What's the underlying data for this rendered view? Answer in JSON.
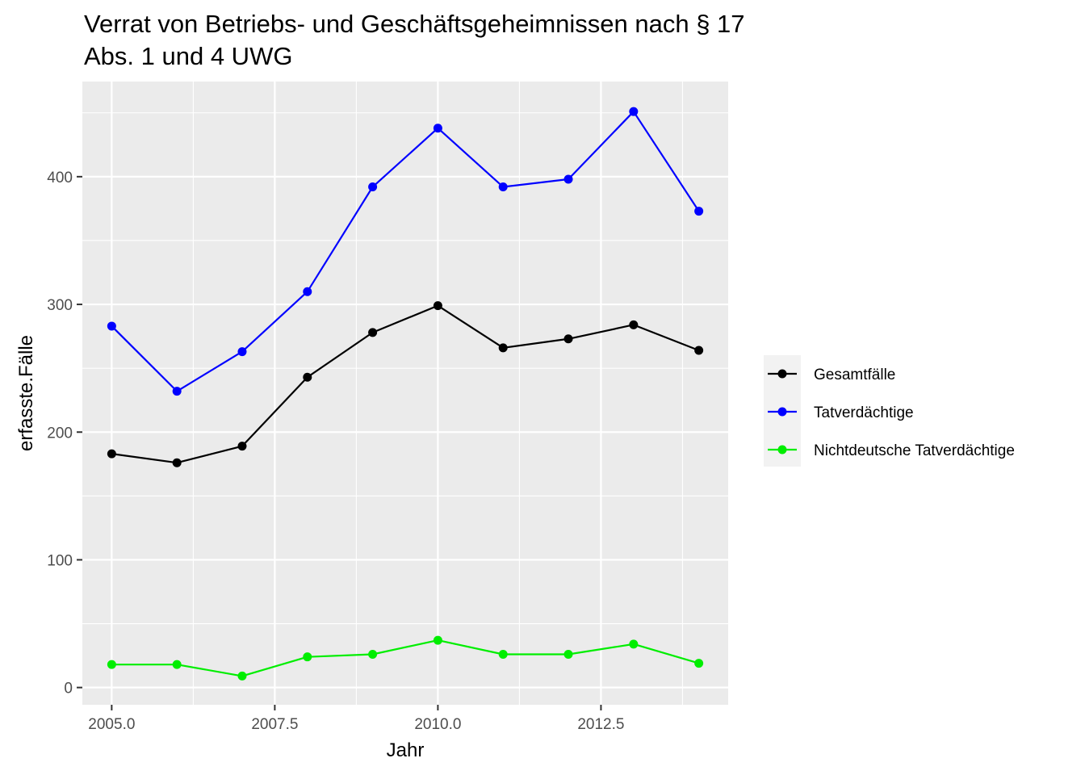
{
  "chart_data": {
    "type": "line",
    "title": "Verrat von Betriebs- und Geschäftsgeheimnissen nach § 17",
    "title_line2": "Abs. 1 und 4 UWG",
    "xlabel": "Jahr",
    "ylabel": "erfasste.Fälle",
    "x": [
      2005,
      2006,
      2007,
      2008,
      2009,
      2010,
      2011,
      2012,
      2013,
      2014
    ],
    "xlim": [
      2004.55,
      2014.45
    ],
    "ylim": [
      -13.5,
      474.5
    ],
    "x_ticks": [
      2005.0,
      2007.5,
      2010.0,
      2012.5
    ],
    "x_tick_labels": [
      "2005.0",
      "2007.5",
      "2010.0",
      "2012.5"
    ],
    "y_ticks": [
      0,
      100,
      200,
      300,
      400
    ],
    "y_tick_labels": [
      "0",
      "100",
      "200",
      "300",
      "400"
    ],
    "grid": true,
    "legend_position": "right",
    "series": [
      {
        "name": "Gesamtfälle",
        "color": "#000000",
        "values": [
          183,
          176,
          189,
          243,
          278,
          299,
          266,
          273,
          284,
          264
        ]
      },
      {
        "name": "Tatverdächtige",
        "color": "#0000ff",
        "values": [
          283,
          232,
          263,
          310,
          392,
          438,
          392,
          398,
          451,
          373
        ]
      },
      {
        "name": "Nichtdeutsche Tatverdächtige",
        "color": "#00ee00",
        "values": [
          18,
          18,
          9,
          24,
          26,
          37,
          26,
          26,
          34,
          19
        ]
      }
    ]
  }
}
